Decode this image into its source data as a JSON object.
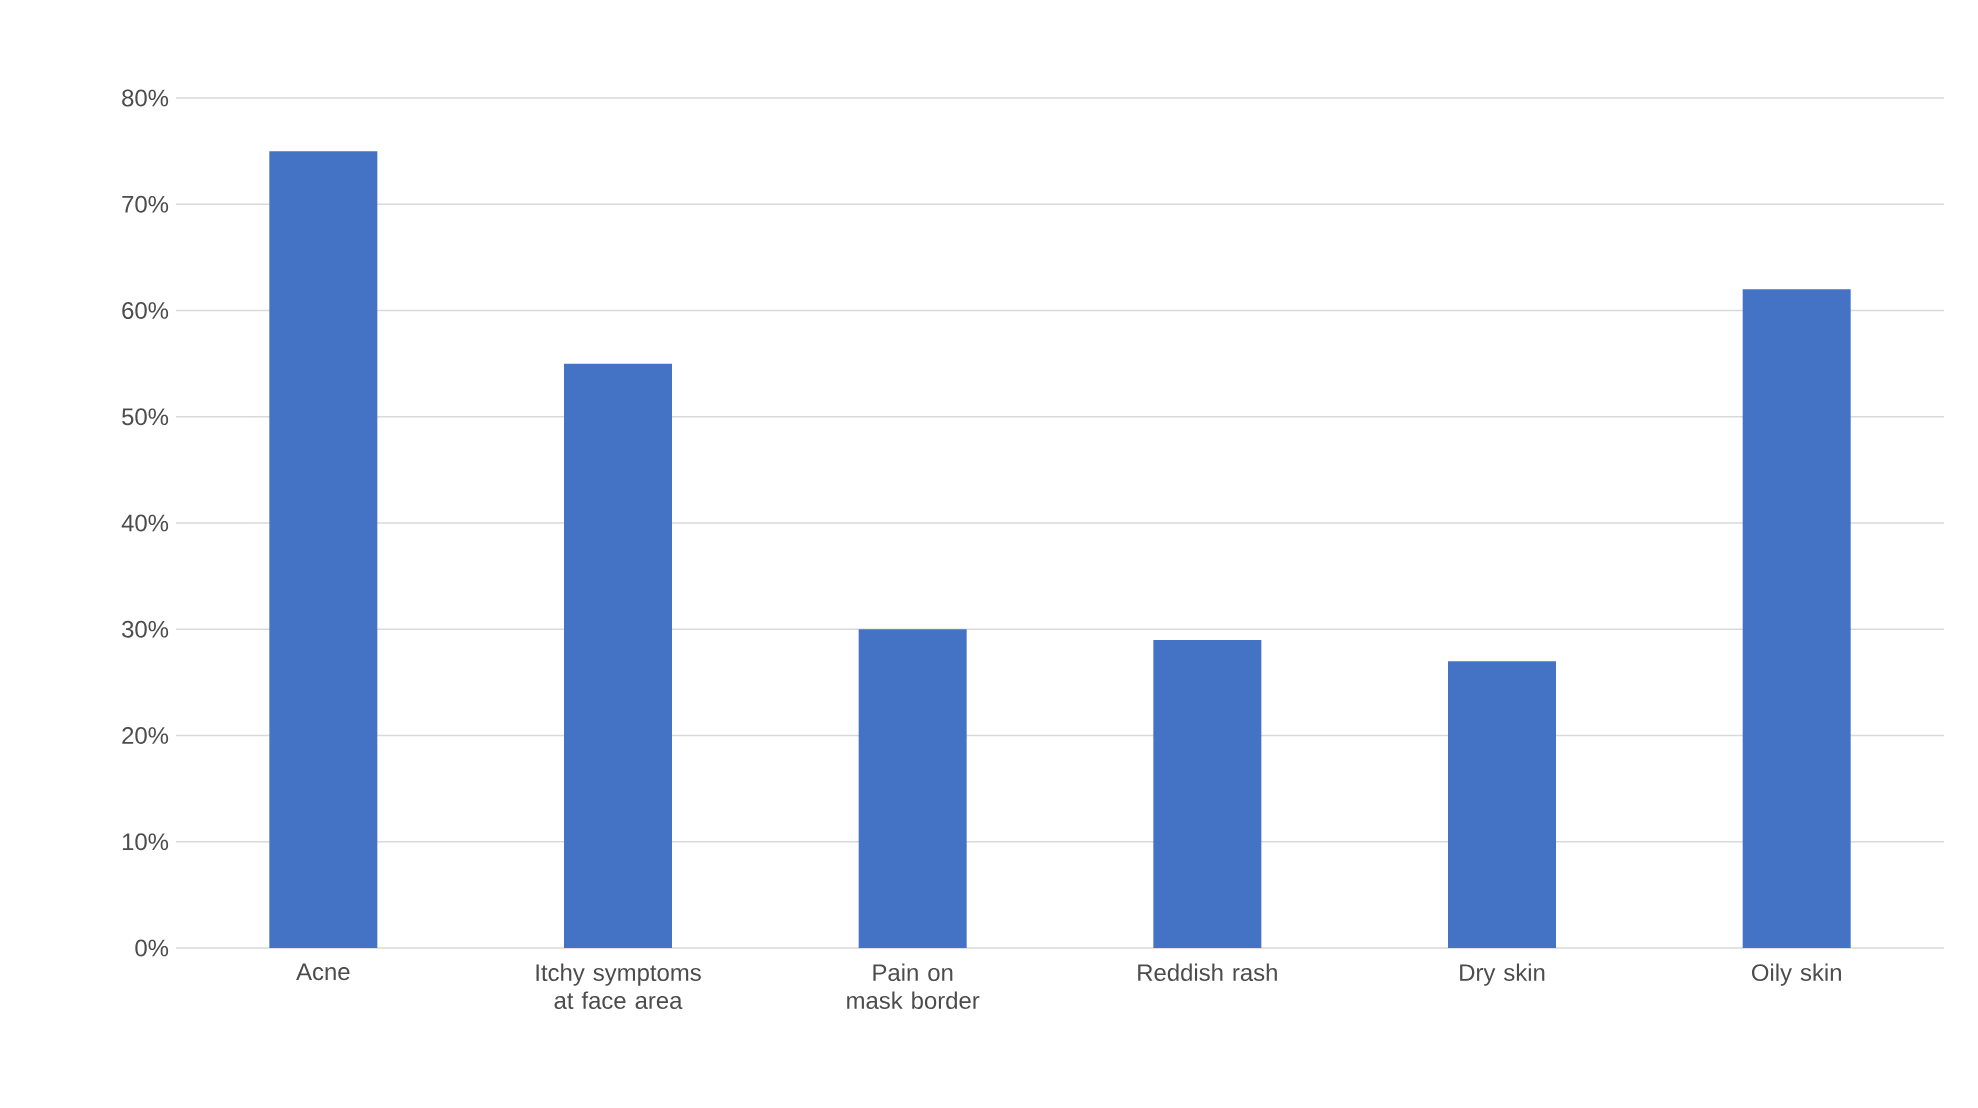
{
  "chart_data": {
    "type": "bar",
    "categories": [
      "Acne",
      "Itchy symptoms at face area",
      "Pain on mask border",
      "Reddish rash",
      "Dry skin",
      "Oily skin"
    ],
    "values": [
      75,
      55,
      30,
      29,
      27,
      62
    ],
    "color": "#4472c4",
    "ylim": [
      0,
      80
    ],
    "yticks": [
      {
        "value": 0,
        "label": "0%"
      },
      {
        "value": 10,
        "label": "10%"
      },
      {
        "value": 20,
        "label": "20%"
      },
      {
        "value": 30,
        "label": "30%"
      },
      {
        "value": 40,
        "label": "40%"
      },
      {
        "value": 50,
        "label": "50%"
      },
      {
        "value": 60,
        "label": "60%"
      },
      {
        "value": 70,
        "label": "70%"
      },
      {
        "value": 80,
        "label": "80%"
      }
    ],
    "grid": "y"
  }
}
